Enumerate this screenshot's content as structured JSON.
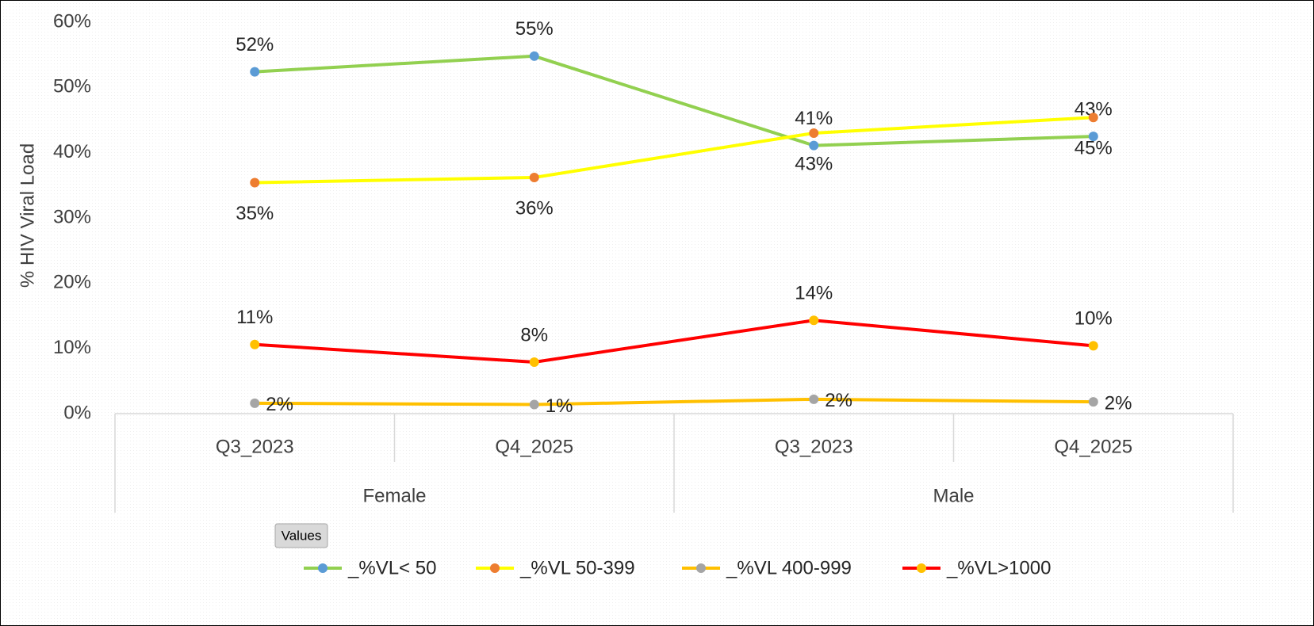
{
  "chart_data": {
    "type": "line",
    "y_axis_label": "% HIV Viral Load",
    "categories": [
      "Q3_2023",
      "Q4_2025",
      "Q3_2023",
      "Q4_2025"
    ],
    "groups": [
      "Female",
      "Male"
    ],
    "filter_button": "Values",
    "ylim": [
      0,
      60
    ],
    "yticks": [
      {
        "value": 0,
        "label": "0%"
      },
      {
        "value": 10,
        "label": "10%"
      },
      {
        "value": 20,
        "label": "20%"
      },
      {
        "value": 30,
        "label": "30%"
      },
      {
        "value": 40,
        "label": "40%"
      },
      {
        "value": 50,
        "label": "50%"
      },
      {
        "value": 60,
        "label": "60%"
      }
    ],
    "legend": "bottom",
    "series": [
      {
        "name": "_%VL< 50",
        "color": "#92d050",
        "marker_color": "#5b9bd5",
        "label_position": "above",
        "values": [
          52.4,
          54.8,
          41.1,
          42.5
        ],
        "value_labels": [
          "52%",
          "55%",
          "41%",
          "43%"
        ]
      },
      {
        "name": "_%VL 50-399",
        "color": "#ffff00",
        "marker_color": "#ed7d31",
        "label_position": "below",
        "values": [
          35.4,
          36.2,
          43.0,
          45.4
        ],
        "value_labels": [
          "35%",
          "36%",
          "43%",
          "45%"
        ]
      },
      {
        "name": "_%VL 400-999",
        "color": "#ffc000",
        "marker_color": "#a5a5a5",
        "label_position": "right",
        "values": [
          1.6,
          1.4,
          2.2,
          1.8
        ],
        "value_labels": [
          "2%",
          "1%",
          "2%",
          "2%"
        ]
      },
      {
        "name": "_%VL>1000",
        "color": "#ff0000",
        "marker_color": "#ffc000",
        "label_position": "above",
        "values": [
          10.6,
          7.9,
          14.3,
          10.4
        ],
        "value_labels": [
          "11%",
          "8%",
          "14%",
          "10%"
        ]
      }
    ]
  }
}
